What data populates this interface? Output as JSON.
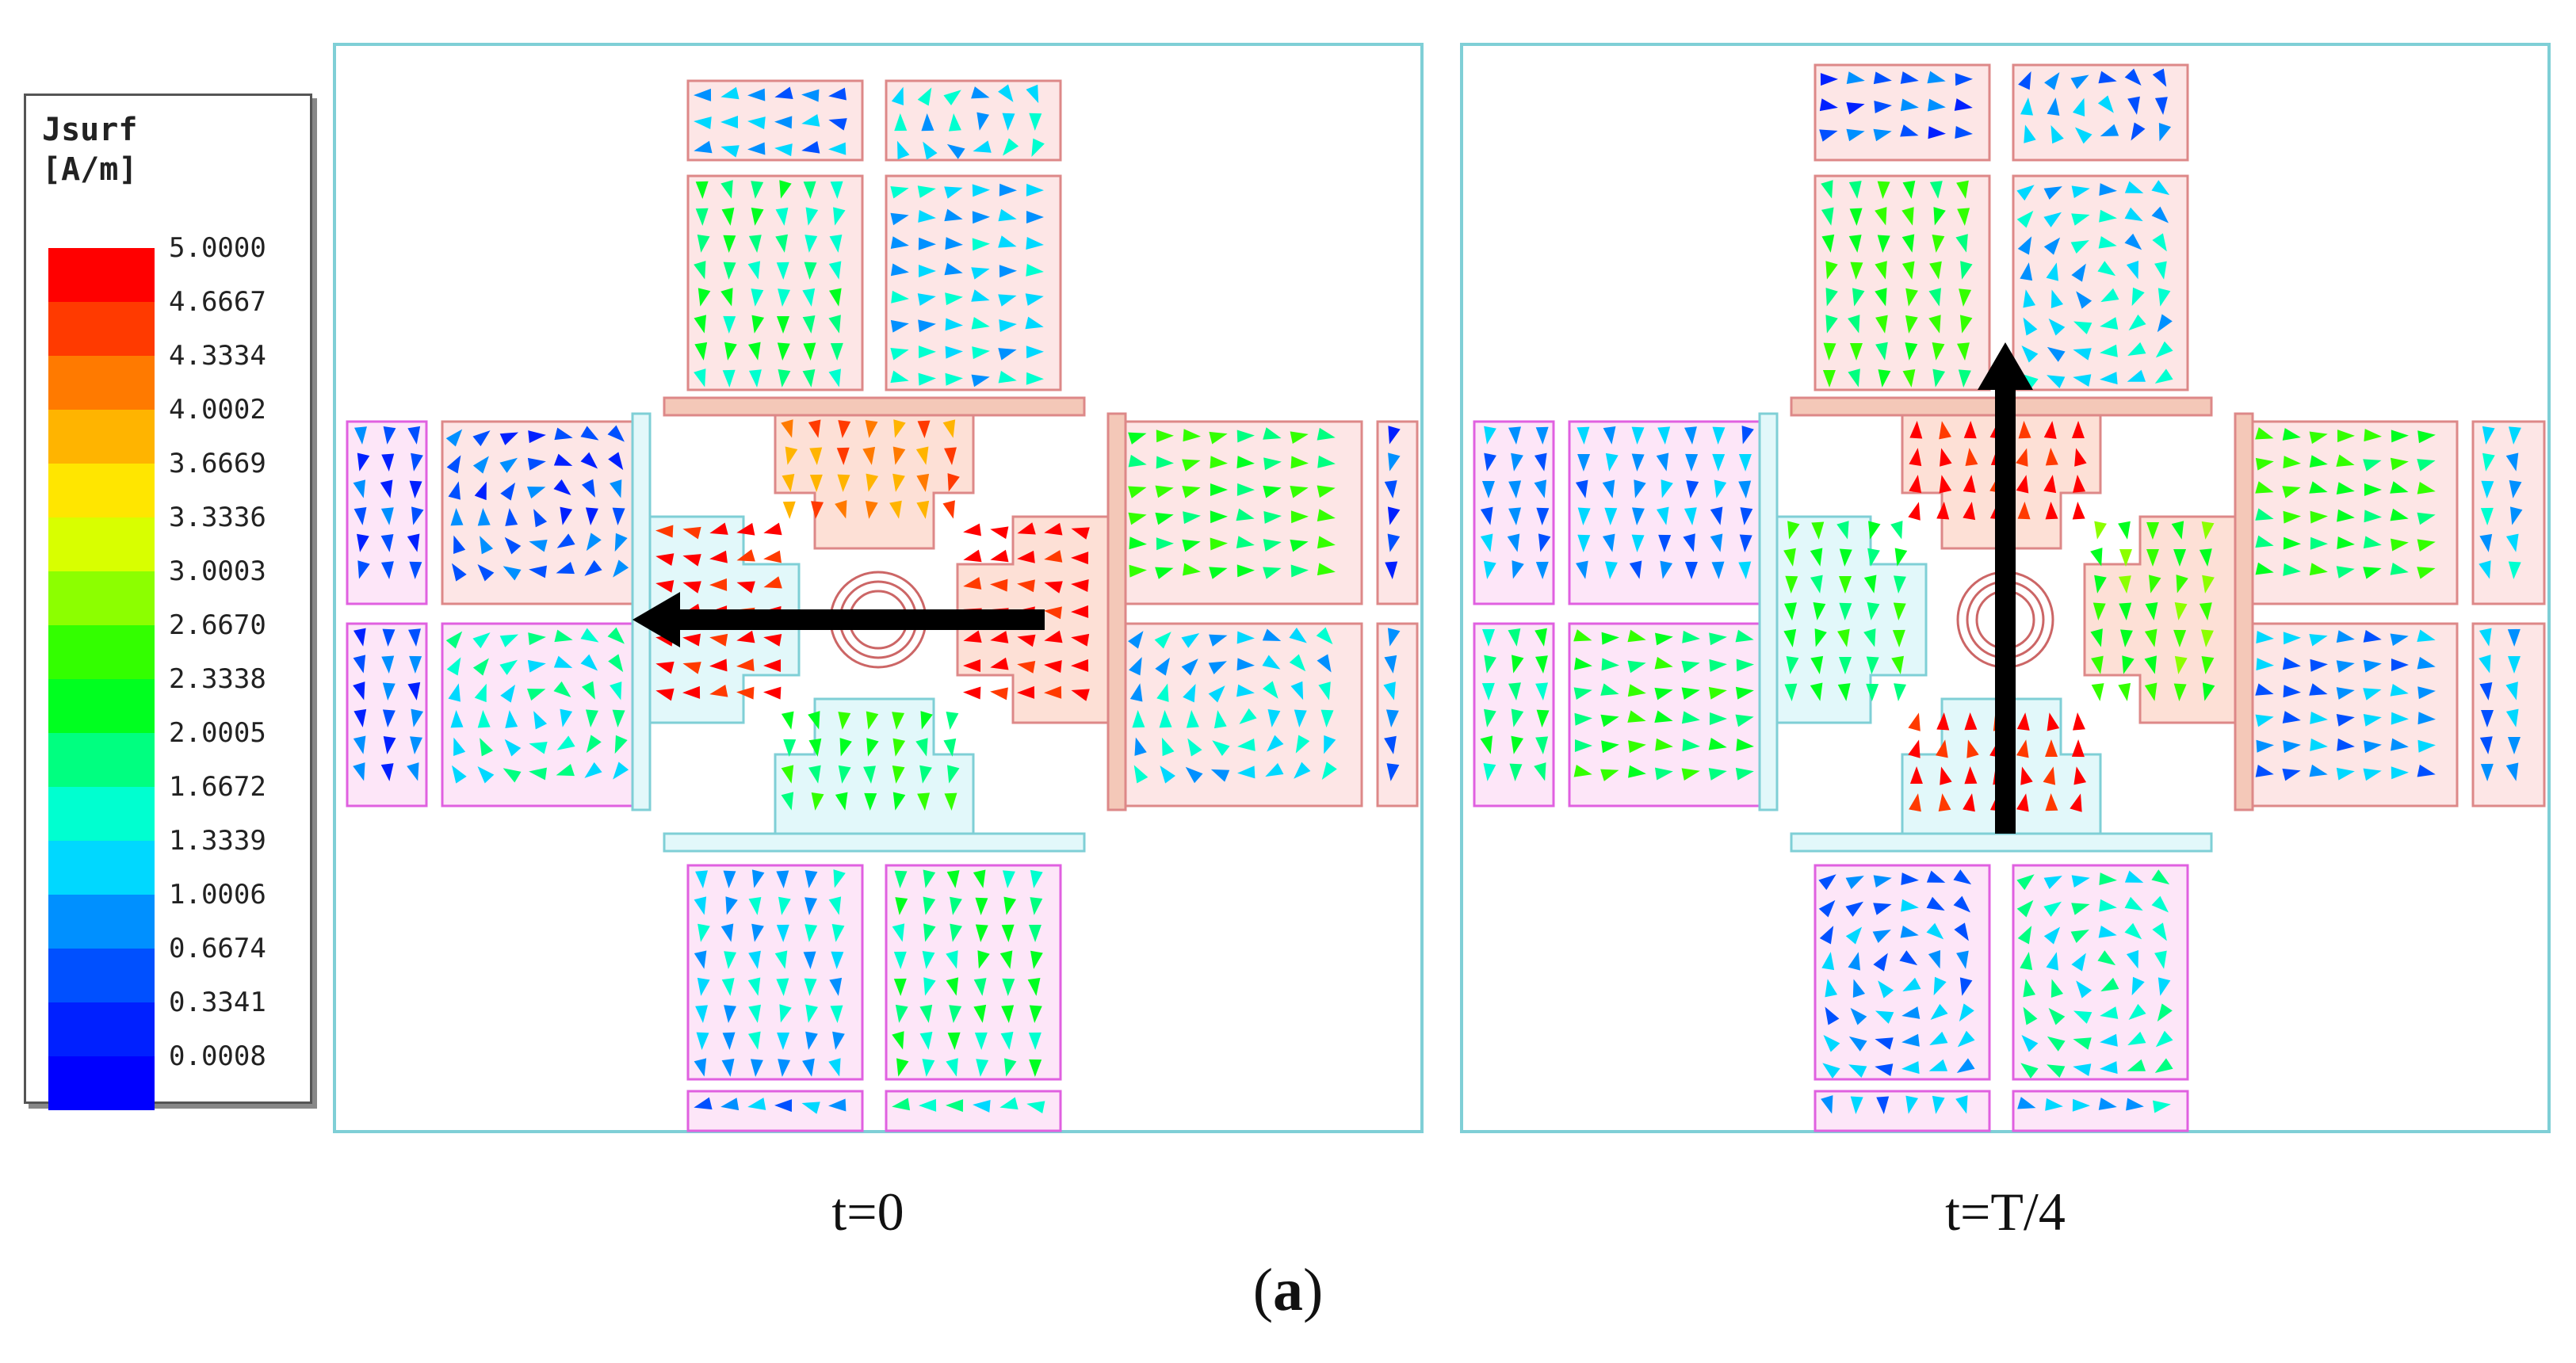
{
  "legend": {
    "title_line1": "Jsurf",
    "title_line2": "[A/m]",
    "levels": [
      "5.0000",
      "4.6667",
      "4.3334",
      "4.0002",
      "3.6669",
      "3.3336",
      "3.0003",
      "2.6670",
      "2.3338",
      "2.0005",
      "1.6672",
      "1.3339",
      "1.0006",
      "0.6674",
      "0.3341",
      "0.0008"
    ],
    "colors": [
      "#ff0000",
      "#ff3a00",
      "#ff7a00",
      "#ffb400",
      "#ffe600",
      "#d8ff00",
      "#8cff00",
      "#33ff00",
      "#00ff20",
      "#00ff80",
      "#00ffd0",
      "#00d8ff",
      "#0090ff",
      "#0050ff",
      "#0020ff",
      "#0000ff"
    ]
  },
  "panels": [
    {
      "caption": "t=0",
      "arrow_direction": "left"
    },
    {
      "caption": "t=T/4",
      "arrow_direction": "up"
    }
  ],
  "figure_label": {
    "open": "(",
    "letter": "a",
    "close": ")"
  }
}
